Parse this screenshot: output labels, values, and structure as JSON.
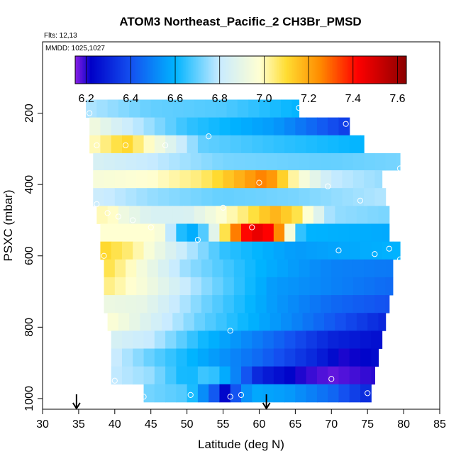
{
  "chart_data": {
    "type": "heatmap",
    "title": "ATOM3 Northeast_Pacific_2 CH3Br_PMSD",
    "flights_label": "Flts: 12,13",
    "mmdd_label": "MMDD: 1025,1027",
    "xlabel": "Latitude (deg N)",
    "ylabel": "PSXC (mbar)",
    "xlim": [
      30,
      85
    ],
    "ylim": [
      1000,
      0
    ],
    "xticks": [
      "30",
      "35",
      "40",
      "45",
      "50",
      "55",
      "60",
      "65",
      "70",
      "75",
      "80",
      "85"
    ],
    "yticks": [
      "200",
      "400",
      "600",
      "800",
      "1000"
    ],
    "colorbar": {
      "range": [
        6.15,
        7.64
      ],
      "ticks": [
        "6.2",
        "6.4",
        "6.6",
        "6.8",
        "7.0",
        "7.2",
        "7.4",
        "7.6"
      ],
      "stops": [
        {
          "v": 6.15,
          "c": "#8a1fe6"
        },
        {
          "v": 6.22,
          "c": "#0000c8"
        },
        {
          "v": 6.4,
          "c": "#1450f0"
        },
        {
          "v": 6.6,
          "c": "#00b4ff"
        },
        {
          "v": 6.8,
          "c": "#c8ebff"
        },
        {
          "v": 6.98,
          "c": "#ffffd2"
        },
        {
          "v": 7.1,
          "c": "#ffdd32"
        },
        {
          "v": 7.25,
          "c": "#ff8c00"
        },
        {
          "v": 7.42,
          "c": "#ff0000"
        },
        {
          "v": 7.64,
          "c": "#8b0000"
        }
      ]
    },
    "cell_lat_step": 1.5,
    "bands": [
      {
        "p": [
          162,
          212
        ],
        "lat": [
          36,
          65.5
        ],
        "points": [
          [
            36.5,
            200
          ],
          [
            65.5,
            185
          ]
        ],
        "keys": [
          [
            36,
            6.78
          ],
          [
            45,
            6.7
          ],
          [
            55,
            6.68
          ],
          [
            65.5,
            6.6
          ]
        ]
      },
      {
        "p": [
          212,
          262
        ],
        "lat": [
          36.5,
          72.5
        ],
        "points": [
          [
            72,
            230
          ]
        ],
        "keys": [
          [
            36.5,
            6.95
          ],
          [
            40,
            6.85
          ],
          [
            50,
            6.65
          ],
          [
            62,
            6.55
          ],
          [
            72.5,
            6.35
          ]
        ]
      },
      {
        "p": [
          262,
          312
        ],
        "lat": [
          36.5,
          74.5
        ],
        "points": [
          [
            37.5,
            290
          ],
          [
            41.5,
            290
          ],
          [
            47,
            290
          ],
          [
            53,
            265
          ]
        ],
        "keys": [
          [
            36.5,
            6.98
          ],
          [
            41.5,
            7.12
          ],
          [
            45,
            6.98
          ],
          [
            52,
            6.7
          ],
          [
            62,
            6.65
          ],
          [
            74.5,
            6.6
          ]
        ]
      },
      {
        "p": [
          312,
          360
        ],
        "lat": [
          37,
          79.5
        ],
        "points": [
          [
            79.5,
            355
          ]
        ],
        "keys": [
          [
            37,
            6.85
          ],
          [
            45,
            6.8
          ],
          [
            55,
            6.72
          ],
          [
            70,
            6.7
          ],
          [
            79.5,
            6.72
          ]
        ]
      },
      {
        "p": [
          360,
          410
        ],
        "lat": [
          37,
          77
        ],
        "points": [
          [
            60,
            395
          ],
          [
            69.5,
            405
          ]
        ],
        "keys": [
          [
            37,
            6.95
          ],
          [
            45,
            6.98
          ],
          [
            52,
            7.05
          ],
          [
            58,
            7.2
          ],
          [
            61,
            7.28
          ],
          [
            65,
            7.0
          ],
          [
            70,
            6.8
          ],
          [
            77,
            6.75
          ]
        ]
      },
      {
        "p": [
          410,
          460
        ],
        "lat": [
          37,
          77.5
        ],
        "points": [
          [
            37.5,
            455
          ],
          [
            74,
            445
          ]
        ],
        "keys": [
          [
            37,
            6.82
          ],
          [
            45,
            6.75
          ],
          [
            55,
            6.7
          ],
          [
            65,
            6.72
          ],
          [
            77.5,
            6.78
          ]
        ]
      },
      {
        "p": [
          460,
          510
        ],
        "lat": [
          37.5,
          78
        ],
        "points": [
          [
            39,
            480
          ],
          [
            40.5,
            490
          ],
          [
            42.5,
            500
          ],
          [
            55,
            465
          ]
        ],
        "keys": [
          [
            37.5,
            6.9
          ],
          [
            39,
            7.1
          ],
          [
            40,
            6.95
          ],
          [
            45,
            6.85
          ],
          [
            50,
            6.85
          ],
          [
            58,
            7.05
          ],
          [
            62,
            7.18
          ],
          [
            65,
            7.1
          ],
          [
            70,
            6.75
          ],
          [
            78,
            6.72
          ]
        ]
      },
      {
        "p": [
          510,
          560
        ],
        "lat": [
          38,
          78
        ],
        "points": [
          [
            45,
            520
          ],
          [
            51.5,
            555
          ],
          [
            59,
            520
          ]
        ],
        "keys": [
          [
            38,
            6.98
          ],
          [
            46,
            6.98
          ],
          [
            50,
            6.55
          ],
          [
            52,
            6.65
          ],
          [
            55,
            7.05
          ],
          [
            57,
            7.3
          ],
          [
            59,
            7.48
          ],
          [
            62,
            7.4
          ],
          [
            64,
            7.0
          ],
          [
            66,
            6.6
          ],
          [
            78,
            6.58
          ]
        ]
      },
      {
        "p": [
          560,
          610
        ],
        "lat": [
          38,
          79.5
        ],
        "points": [
          [
            38.5,
            600
          ],
          [
            71,
            585
          ],
          [
            76,
            595
          ],
          [
            78,
            580
          ],
          [
            79.5,
            610
          ]
        ],
        "keys": [
          [
            38,
            7.12
          ],
          [
            42,
            7.05
          ],
          [
            48,
            6.85
          ],
          [
            55,
            6.65
          ],
          [
            65,
            6.55
          ],
          [
            79.5,
            6.6
          ]
        ]
      },
      {
        "p": [
          610,
          660
        ],
        "lat": [
          38.5,
          78.5
        ],
        "points": [],
        "keys": [
          [
            38.5,
            7.1
          ],
          [
            42,
            7.0
          ],
          [
            50,
            6.75
          ],
          [
            60,
            6.6
          ],
          [
            70,
            6.5
          ],
          [
            78.5,
            6.48
          ]
        ]
      },
      {
        "p": [
          660,
          710
        ],
        "lat": [
          38.5,
          78.5
        ],
        "points": [],
        "keys": [
          [
            38.5,
            7.05
          ],
          [
            44,
            6.95
          ],
          [
            52,
            6.75
          ],
          [
            62,
            6.55
          ],
          [
            78.5,
            6.45
          ]
        ]
      },
      {
        "p": [
          710,
          760
        ],
        "lat": [
          38.5,
          78
        ],
        "points": [],
        "keys": [
          [
            38.5,
            6.92
          ],
          [
            44,
            6.9
          ],
          [
            52,
            6.72
          ],
          [
            62,
            6.55
          ],
          [
            70,
            6.45
          ],
          [
            78,
            6.4
          ]
        ]
      },
      {
        "p": [
          760,
          810
        ],
        "lat": [
          39,
          77.5
        ],
        "points": [
          [
            56,
            810
          ]
        ],
        "keys": [
          [
            39,
            6.98
          ],
          [
            45,
            6.85
          ],
          [
            52,
            6.7
          ],
          [
            62,
            6.55
          ],
          [
            70,
            6.42
          ],
          [
            77.5,
            6.3
          ]
        ]
      },
      {
        "p": [
          810,
          860
        ],
        "lat": [
          39.5,
          77
        ],
        "points": [],
        "keys": [
          [
            39.5,
            6.85
          ],
          [
            45,
            6.8
          ],
          [
            52,
            6.62
          ],
          [
            62,
            6.45
          ],
          [
            70,
            6.3
          ],
          [
            77,
            6.25
          ]
        ]
      },
      {
        "p": [
          860,
          910
        ],
        "lat": [
          39.5,
          76.5
        ],
        "points": [],
        "keys": [
          [
            39.5,
            6.82
          ],
          [
            45,
            6.7
          ],
          [
            52,
            6.58
          ],
          [
            60,
            6.45
          ],
          [
            68,
            6.3
          ],
          [
            72,
            6.2
          ],
          [
            76.5,
            6.25
          ]
        ]
      },
      {
        "p": [
          910,
          960
        ],
        "lat": [
          39.5,
          76
        ],
        "points": [
          [
            40,
            950
          ],
          [
            70,
            945
          ]
        ],
        "keys": [
          [
            39.5,
            6.8
          ],
          [
            45,
            6.75
          ],
          [
            50,
            6.6
          ],
          [
            53,
            6.68
          ],
          [
            56,
            6.55
          ],
          [
            60,
            6.3
          ],
          [
            66,
            6.2
          ],
          [
            70,
            6.17
          ],
          [
            76,
            6.2
          ]
        ]
      },
      {
        "p": [
          960,
          1010
        ],
        "lat": [
          44,
          75.5
        ],
        "points": [
          [
            44,
            995
          ],
          [
            50.5,
            990
          ],
          [
            56,
            995
          ],
          [
            57.5,
            990
          ],
          [
            75,
            985
          ]
        ],
        "keys": [
          [
            44,
            6.72
          ],
          [
            50,
            6.68
          ],
          [
            54,
            6.4
          ],
          [
            55.5,
            6.2
          ],
          [
            57,
            6.45
          ],
          [
            59,
            6.58
          ],
          [
            64,
            6.55
          ],
          [
            70,
            6.45
          ],
          [
            75.5,
            6.3
          ]
        ]
      }
    ],
    "flight_markers_lat": [
      34.7,
      61
    ]
  }
}
